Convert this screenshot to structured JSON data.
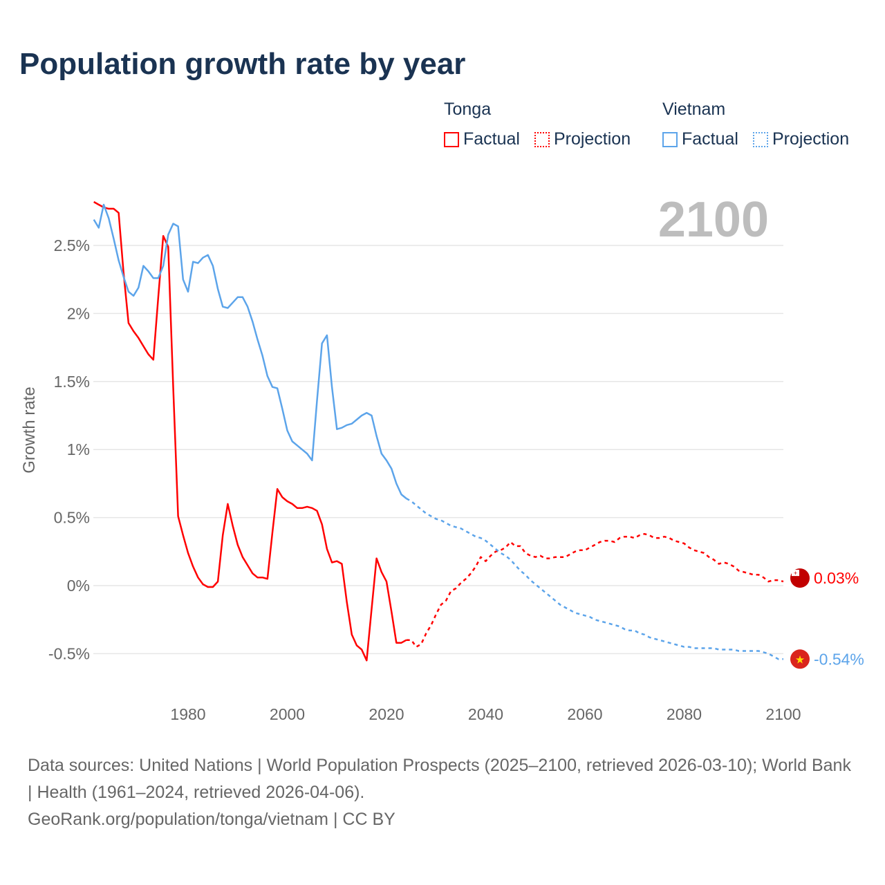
{
  "title": "Population growth rate by year",
  "legend": {
    "groups": [
      {
        "name": "Tonga",
        "factual": "Factual",
        "projection": "Projection",
        "color": "#ff0000"
      },
      {
        "name": "Vietnam",
        "factual": "Factual",
        "projection": "Projection",
        "color": "#5ca4ea"
      }
    ]
  },
  "footer": {
    "line1": "Data sources: United Nations | World Population Prospects (2025–2100, retrieved 2026-03-10); World Bank | Health (1961–2024, retrieved 2026-04-06).",
    "line2": "GeoRank.org/population/tonga/vietnam | CC BY"
  },
  "chart_data": {
    "type": "line",
    "title": "Population growth rate by year",
    "ylabel": "Growth rate",
    "xlabel": "",
    "year_label": "2100",
    "xlim": [
      1961,
      2100
    ],
    "ylim": [
      -0.65,
      2.9
    ],
    "xticks": [
      1980,
      2000,
      2020,
      2040,
      2060,
      2080,
      2100
    ],
    "yticks": [
      {
        "v": -0.5,
        "label": "-0.5%"
      },
      {
        "v": 0,
        "label": "0%"
      },
      {
        "v": 0.5,
        "label": "0.5%"
      },
      {
        "v": 1,
        "label": "1%"
      },
      {
        "v": 1.5,
        "label": "1.5%"
      },
      {
        "v": 2,
        "label": "2%"
      },
      {
        "v": 2.5,
        "label": "2.5%"
      }
    ],
    "grid": true,
    "legend_position": "top-right",
    "series": [
      {
        "name": "Tonga",
        "color": "#ff0000",
        "end_label": "0.03%",
        "factual": {
          "start": 1961,
          "values": [
            2.82,
            2.8,
            2.78,
            2.77,
            2.77,
            2.74,
            2.3,
            1.93,
            1.87,
            1.82,
            1.76,
            1.7,
            1.66,
            2.12,
            2.57,
            2.49,
            1.46,
            0.51,
            0.37,
            0.24,
            0.14,
            0.06,
            0.01,
            -0.01,
            -0.01,
            0.03,
            0.37,
            0.6,
            0.44,
            0.3,
            0.21,
            0.15,
            0.09,
            0.06,
            0.06,
            0.05,
            0.39,
            0.71,
            0.65,
            0.62,
            0.6,
            0.57,
            0.57,
            0.58,
            0.57,
            0.55,
            0.45,
            0.27,
            0.17,
            0.18,
            0.16,
            -0.12,
            -0.36,
            -0.44,
            -0.47,
            -0.55,
            -0.17,
            0.2,
            0.1,
            0.03,
            -0.19,
            -0.42,
            -0.42,
            -0.4
          ]
        },
        "projection": {
          "start": 2024,
          "values": [
            -0.4,
            -0.4,
            -0.45,
            -0.43,
            -0.35,
            -0.29,
            -0.21,
            -0.14,
            -0.11,
            -0.04,
            -0.02,
            0.02,
            0.05,
            0.09,
            0.14,
            0.21,
            0.18,
            0.22,
            0.25,
            0.26,
            0.28,
            0.32,
            0.29,
            0.29,
            0.24,
            0.22,
            0.21,
            0.22,
            0.2,
            0.2,
            0.21,
            0.21,
            0.21,
            0.23,
            0.25,
            0.26,
            0.26,
            0.28,
            0.3,
            0.32,
            0.33,
            0.33,
            0.32,
            0.35,
            0.36,
            0.36,
            0.35,
            0.37,
            0.38,
            0.37,
            0.35,
            0.35,
            0.36,
            0.35,
            0.33,
            0.32,
            0.31,
            0.28,
            0.26,
            0.25,
            0.24,
            0.21,
            0.19,
            0.16,
            0.17,
            0.16,
            0.14,
            0.11,
            0.1,
            0.09,
            0.08,
            0.08,
            0.06,
            0.03,
            0.04,
            0.04,
            0.03
          ]
        }
      },
      {
        "name": "Vietnam",
        "color": "#5ca4ea",
        "end_label": "-0.54%",
        "factual": {
          "start": 1961,
          "values": [
            2.69,
            2.63,
            2.8,
            2.7,
            2.55,
            2.39,
            2.27,
            2.16,
            2.13,
            2.19,
            2.35,
            2.31,
            2.26,
            2.26,
            2.35,
            2.58,
            2.66,
            2.64,
            2.25,
            2.16,
            2.38,
            2.37,
            2.41,
            2.43,
            2.35,
            2.18,
            2.05,
            2.04,
            2.08,
            2.12,
            2.12,
            2.05,
            1.94,
            1.81,
            1.69,
            1.54,
            1.46,
            1.45,
            1.3,
            1.14,
            1.06,
            1.03,
            1.0,
            0.97,
            0.92,
            1.36,
            1.78,
            1.84,
            1.46,
            1.15,
            1.16,
            1.18,
            1.19,
            1.22,
            1.25,
            1.27,
            1.25,
            1.1,
            0.97,
            0.92,
            0.86,
            0.75,
            0.67,
            0.64
          ]
        },
        "projection": {
          "start": 2024,
          "values": [
            0.64,
            0.62,
            0.59,
            0.56,
            0.53,
            0.51,
            0.49,
            0.48,
            0.46,
            0.44,
            0.43,
            0.42,
            0.4,
            0.38,
            0.36,
            0.35,
            0.33,
            0.3,
            0.27,
            0.24,
            0.22,
            0.19,
            0.15,
            0.11,
            0.08,
            0.04,
            0.01,
            -0.02,
            -0.05,
            -0.08,
            -0.11,
            -0.14,
            -0.16,
            -0.18,
            -0.2,
            -0.21,
            -0.22,
            -0.23,
            -0.25,
            -0.26,
            -0.27,
            -0.28,
            -0.29,
            -0.3,
            -0.32,
            -0.33,
            -0.33,
            -0.35,
            -0.36,
            -0.38,
            -0.39,
            -0.4,
            -0.41,
            -0.42,
            -0.43,
            -0.44,
            -0.45,
            -0.45,
            -0.46,
            -0.46,
            -0.46,
            -0.46,
            -0.46,
            -0.47,
            -0.47,
            -0.47,
            -0.47,
            -0.48,
            -0.48,
            -0.48,
            -0.48,
            -0.48,
            -0.49,
            -0.5,
            -0.52,
            -0.54,
            -0.54
          ]
        }
      }
    ]
  }
}
